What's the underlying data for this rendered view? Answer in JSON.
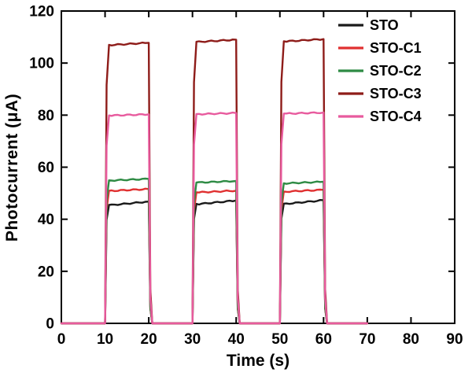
{
  "chart_data": {
    "type": "line",
    "title": "",
    "xlabel": "Time (s)",
    "ylabel": "Photocurrent (μA)",
    "xlim": [
      0,
      90
    ],
    "ylim": [
      0,
      120
    ],
    "xticks": [
      0,
      10,
      20,
      30,
      40,
      50,
      60,
      70,
      80,
      90
    ],
    "yticks": [
      0,
      20,
      40,
      60,
      80,
      100,
      120
    ],
    "grid": false,
    "legend_position": "top-right",
    "baseline": 0,
    "x_end": 70,
    "pulse_windows": [
      [
        10,
        20
      ],
      [
        30,
        40
      ],
      [
        50,
        60
      ]
    ],
    "series": [
      {
        "name": "STO",
        "color": "#1a1a1a",
        "levels": [
          46.8,
          47.2,
          47.3
        ],
        "rise": 1.6
      },
      {
        "name": "STO-C1",
        "color": "#e03030",
        "levels": [
          51.6,
          51.0,
          51.3
        ],
        "rise": 0.8
      },
      {
        "name": "STO-C2",
        "color": "#2e8b44",
        "levels": [
          55.5,
          54.7,
          54.4
        ],
        "rise": 0.7
      },
      {
        "name": "STO-C3",
        "color": "#8e1c19",
        "levels": [
          107.8,
          109.0,
          109.2
        ],
        "rise": 1.0
      },
      {
        "name": "STO-C4",
        "color": "#e85b9e",
        "levels": [
          80.3,
          80.8,
          81.0
        ],
        "rise": 0.5
      }
    ]
  }
}
